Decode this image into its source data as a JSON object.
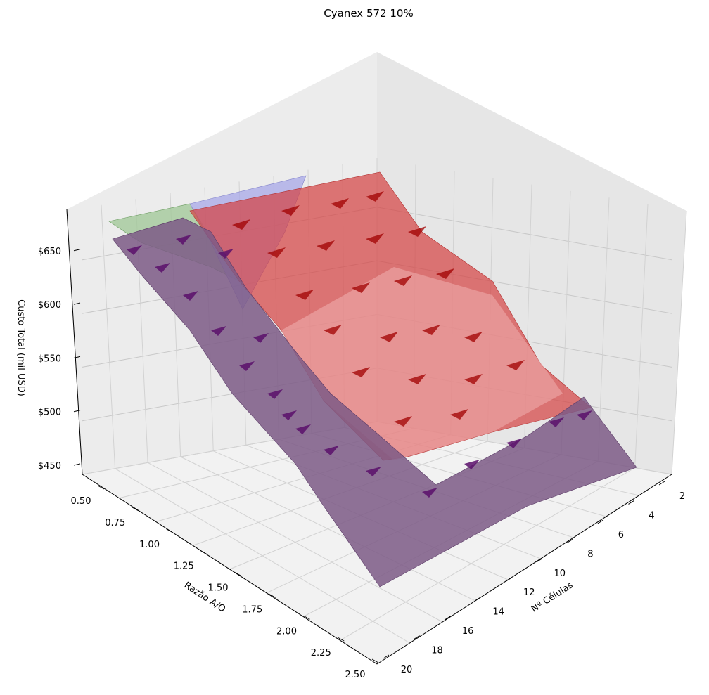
{
  "chart_data": {
    "type": "surface3d",
    "title": "Cyanex 572 10%",
    "xlabel": "Nº Células",
    "ylabel": "Razão A/O",
    "zlabel": "Custo Total (mil USD)",
    "x_ticks": [
      "2",
      "4",
      "6",
      "8",
      "10",
      "12",
      "14",
      "16",
      "18",
      "20"
    ],
    "y_ticks": [
      "0.50",
      "0.75",
      "1.00",
      "1.25",
      "1.50",
      "1.75",
      "2.00",
      "2.25",
      "2.50"
    ],
    "z_ticks": [
      "$450",
      "$500",
      "$550",
      "$600",
      "$650"
    ],
    "xlim": [
      1,
      20
    ],
    "ylim": [
      0.45,
      2.55
    ],
    "zlim": [
      440,
      690
    ],
    "series": [
      {
        "color": "#a8a8e8",
        "opacity": 0.75,
        "region": "upper plane"
      },
      {
        "color": "#9fc795",
        "opacity": 0.75,
        "region": "upper-left plane"
      },
      {
        "color": "#d44040",
        "opacity": 0.7,
        "region": "middle surface"
      },
      {
        "color": "#7d5a86",
        "opacity": 0.85,
        "region": "lower surface"
      }
    ]
  }
}
